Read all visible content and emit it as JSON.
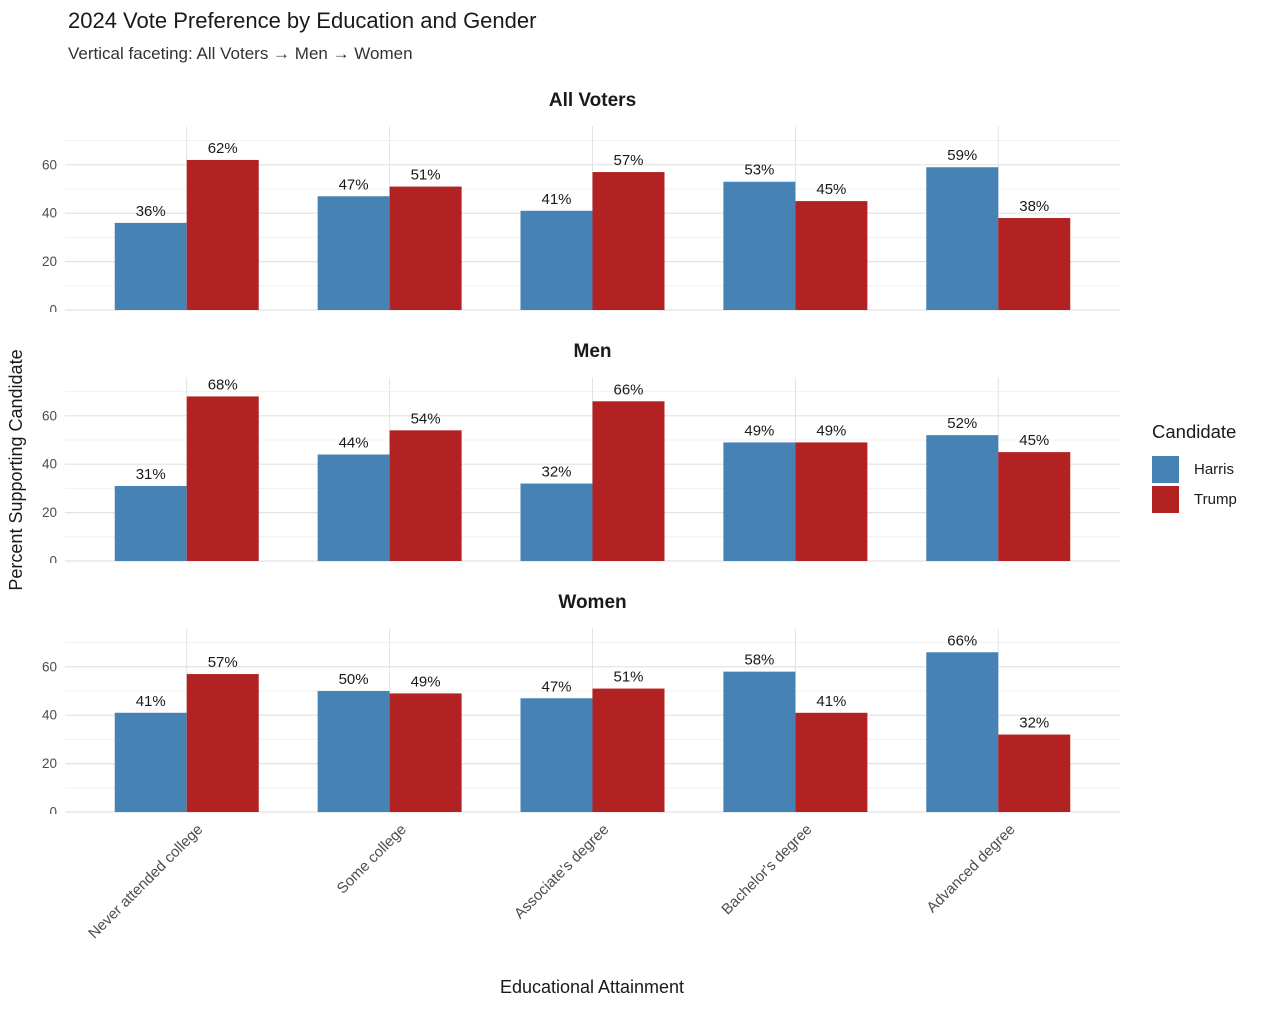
{
  "header": {
    "title": "2024 Vote Preference by Education and Gender",
    "subtitle": "Vertical faceting: All Voters → Men → Women"
  },
  "legend": {
    "title": "Candidate",
    "entries": [
      {
        "label": "Harris",
        "color": "#4682B4"
      },
      {
        "label": "Trump",
        "color": "#B22222"
      }
    ]
  },
  "chart_data": {
    "type": "bar",
    "title": "2024 Vote Preference by Education and Gender",
    "subtitle": "Vertical faceting: All Voters → Men → Women",
    "xlabel": "Educational Attainment",
    "ylabel": "Percent Supporting Candidate",
    "categories": [
      "Never attended college",
      "Some college",
      "Associate's degree",
      "Bachelor's degree",
      "Advanced degree"
    ],
    "ylim": [
      0,
      76
    ],
    "yticks": [
      0,
      20,
      40,
      60
    ],
    "y_minor": [
      10,
      30,
      50,
      70
    ],
    "grid": true,
    "legend_position": "right",
    "value_suffix": "%",
    "bar_layout": "dodged",
    "facets": [
      {
        "title": "All Voters",
        "series": [
          {
            "name": "Harris",
            "color": "#4682B4",
            "values": [
              36,
              47,
              41,
              53,
              59
            ]
          },
          {
            "name": "Trump",
            "color": "#B22222",
            "values": [
              62,
              51,
              57,
              45,
              38
            ]
          }
        ]
      },
      {
        "title": "Men",
        "series": [
          {
            "name": "Harris",
            "color": "#4682B4",
            "values": [
              31,
              44,
              32,
              49,
              52
            ]
          },
          {
            "name": "Trump",
            "color": "#B22222",
            "values": [
              68,
              54,
              66,
              49,
              45
            ]
          }
        ]
      },
      {
        "title": "Women",
        "series": [
          {
            "name": "Harris",
            "color": "#4682B4",
            "values": [
              41,
              50,
              47,
              58,
              66
            ]
          },
          {
            "name": "Trump",
            "color": "#B22222",
            "values": [
              57,
              49,
              51,
              41,
              32
            ]
          }
        ]
      }
    ],
    "colors": {
      "grid_major": "#E2E2E2",
      "grid_minor": "#F0F0F0",
      "tick_text": "#4d4d4d",
      "label_text": "#1a1a1a"
    }
  }
}
